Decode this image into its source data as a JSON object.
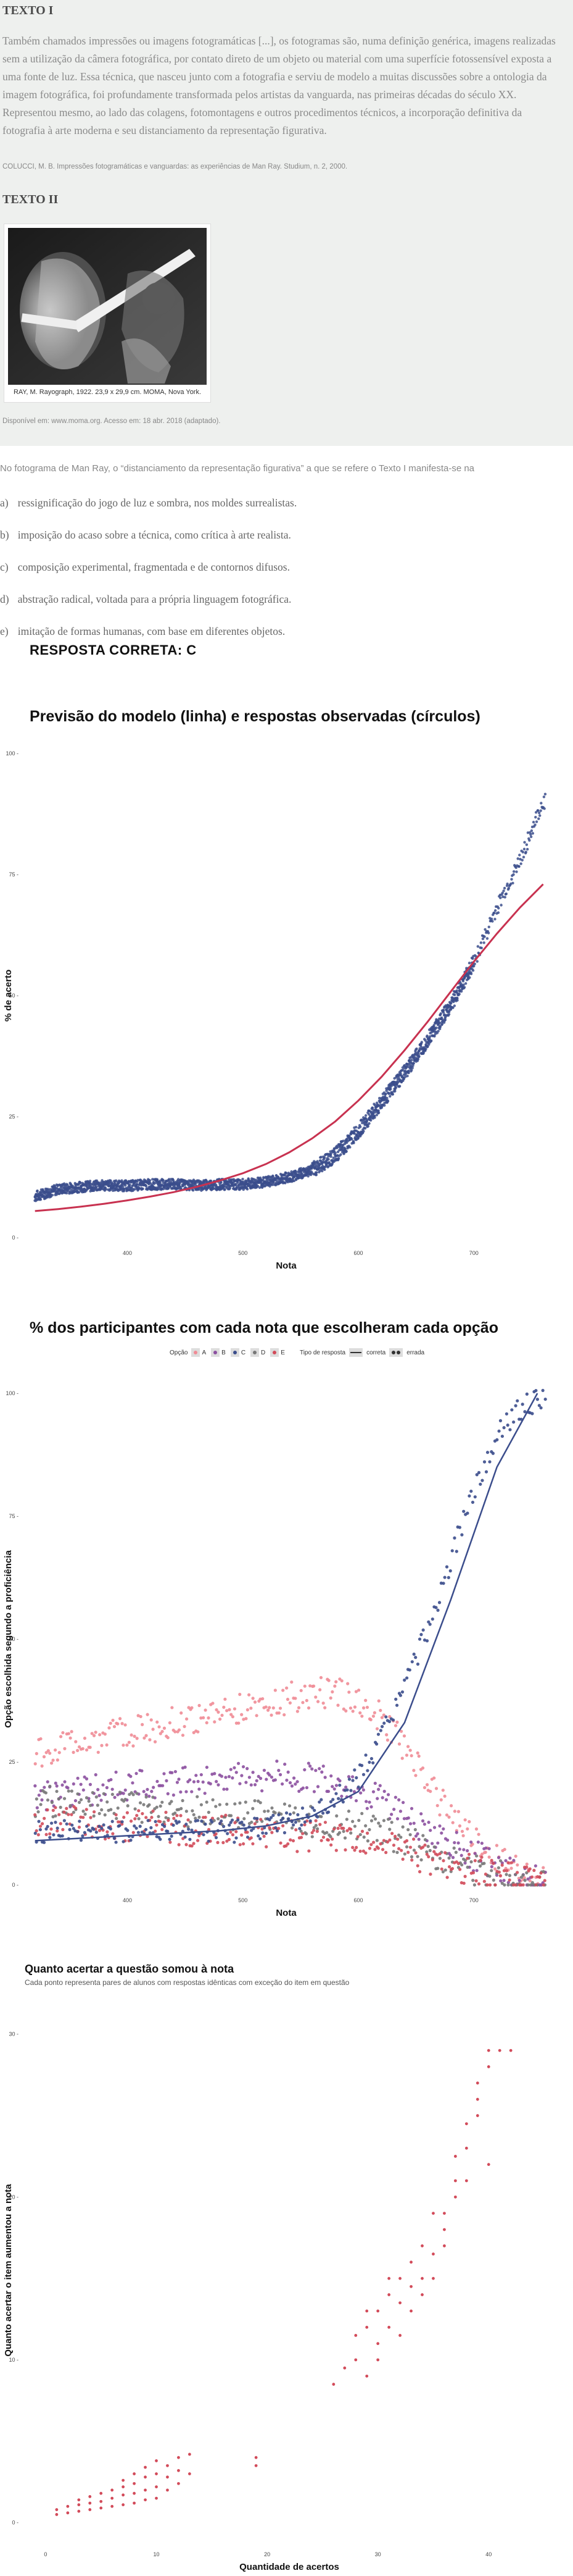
{
  "exam": {
    "texto1_heading": "TEXTO I",
    "texto1_body": "Também chamados impressões ou imagens fotogramáticas [...], os fotogramas são, numa definição genérica, imagens realizadas sem a utilização da câmera fotográfica, por contato direto de um objeto ou material com uma superfície fotossensível exposta a uma fonte de luz. Essa técnica, que nasceu junto com a fotografia e serviu de modelo a muitas discussões sobre a ontologia da imagem fotográfica, foi profundamente transformada pelos artistas da vanguarda, nas primeiras décadas do século XX. Representou mesmo, ao lado das colagens, fotomontagens e outros procedimentos técnicos, a incorporação definitiva da fotografia à arte moderna e seu distanciamento da representação figurativa.",
    "texto1_source": "COLUCCI, M. B. Impressões fotogramáticas e vanguardas: as experiências de Man Ray. Studium, n. 2, 2000.",
    "texto2_heading": "TEXTO II",
    "photo_caption": "RAY, M. Rayograph, 1922. 23,9 x 29,9 cm. MOMA, Nova York.",
    "texto2_source": "Disponível em: www.moma.org. Acesso em: 18 abr. 2018 (adaptado).",
    "question": "No fotograma de Man Ray, o “distanciamento da representação figurativa” a que se refere o Texto I manifesta-se na",
    "options": [
      {
        "letter": "a)",
        "text": "ressignificação do jogo de luz e sombra, nos moldes surrealistas."
      },
      {
        "letter": "b)",
        "text": "imposição do acaso sobre a técnica, como crítica à arte realista."
      },
      {
        "letter": "c)",
        "text": "composição experimental, fragmentada e de contornos difusos."
      },
      {
        "letter": "d)",
        "text": "abstração radical, voltada para a própria linguagem fotográfica."
      },
      {
        "letter": "e)",
        "text": "imitação de formas humanas, com base em diferentes objetos."
      }
    ],
    "answer_text": "RESPOSTA CORRETA: C"
  },
  "colors": {
    "points_blue": "#3b4d8c",
    "model_red": "#c83250",
    "opt_A": "#f08c96",
    "opt_B": "#8c50a0",
    "opt_C": "#3b4d8c",
    "opt_D": "#787878",
    "opt_E": "#d24b5a"
  },
  "chart_data": [
    {
      "type": "scatter",
      "title": "Previsão do modelo (linha) e respostas observadas (círculos)",
      "xlabel": "Nota",
      "ylabel": "% de acerto",
      "xlim": [
        310,
        765
      ],
      "ylim": [
        0,
        100
      ],
      "xticks": [
        400,
        500,
        600,
        700
      ],
      "yticks": [
        0,
        25,
        50,
        75,
        100
      ],
      "tick_labels_y": [
        "0 -",
        "25 -",
        "50 -",
        "75 -",
        "100 -"
      ],
      "tick_labels_x": [
        "400",
        "500",
        "600",
        "700"
      ],
      "grid": false,
      "series": [
        {
          "kind": "points",
          "x": [
            320,
            340,
            360,
            380,
            400,
            420,
            440,
            460,
            480,
            500,
            520,
            540,
            560,
            580,
            600,
            620,
            640,
            660,
            680,
            700,
            720,
            740,
            760
          ],
          "y": [
            8.5,
            10,
            10.5,
            10.8,
            10.7,
            11,
            11,
            10.8,
            11,
            11,
            11.5,
            12.5,
            14,
            17,
            22,
            28,
            34,
            41,
            48,
            57,
            68,
            78,
            90
          ]
        },
        {
          "kind": "line",
          "x": [
            320,
            340,
            360,
            380,
            400,
            420,
            440,
            460,
            480,
            500,
            520,
            540,
            560,
            580,
            600,
            620,
            640,
            660,
            680,
            700,
            720,
            740,
            760
          ],
          "y": [
            5.5,
            5.9,
            6.4,
            7,
            7.7,
            8.5,
            9.4,
            10.5,
            11.8,
            13.3,
            15.2,
            17.6,
            20.5,
            24,
            28.3,
            33.2,
            38.7,
            44.6,
            50.8,
            57,
            62.8,
            68.2,
            73
          ]
        }
      ]
    },
    {
      "type": "scatter",
      "title": "% dos participantes com cada nota que escolheram cada opção",
      "xlabel": "Nota",
      "ylabel": "Opção escolhida segundo a proficiência",
      "xlim": [
        310,
        765
      ],
      "ylim": [
        0,
        100
      ],
      "xticks": [
        400,
        500,
        600,
        700
      ],
      "yticks": [
        0,
        25,
        50,
        75,
        100
      ],
      "tick_labels_y": [
        "0 -",
        "25 -",
        "50 -",
        "75 -",
        "100 -"
      ],
      "tick_labels_x": [
        "400",
        "500",
        "600",
        "700"
      ],
      "legend": {
        "placement": "top",
        "title_option": "Opção",
        "options": [
          "A",
          "B",
          "C",
          "D",
          "E"
        ],
        "title_type": "Tipo de resposta",
        "types": [
          "correta",
          "errada"
        ]
      },
      "x": [
        320,
        340,
        360,
        380,
        400,
        420,
        440,
        460,
        480,
        500,
        520,
        540,
        560,
        580,
        600,
        620,
        640,
        660,
        680,
        700,
        720,
        740,
        760
      ],
      "series": [
        {
          "name": "A",
          "y": [
            27,
            28,
            29,
            30,
            31,
            32,
            33,
            34,
            35,
            36,
            37,
            38,
            39,
            39,
            38,
            34,
            28,
            21,
            14,
            9,
            5,
            3,
            1
          ]
        },
        {
          "name": "B",
          "y": [
            18,
            18.5,
            19,
            19.5,
            20,
            20.5,
            21,
            21.5,
            22,
            22,
            22,
            22,
            22,
            21,
            19,
            17,
            14,
            11,
            8,
            6,
            4,
            2,
            1
          ]
        },
        {
          "name": "C",
          "y": [
            11,
            11,
            11,
            11,
            11,
            11,
            11,
            11,
            11,
            11,
            12,
            13,
            14,
            17,
            22,
            30,
            40,
            52,
            66,
            80,
            92,
            97,
            99
          ]
        },
        {
          "name": "D",
          "y": [
            17,
            17,
            17,
            16.5,
            16,
            15.5,
            15,
            15,
            14.5,
            14,
            14,
            13.5,
            13,
            13,
            12,
            11,
            9,
            7,
            5,
            3,
            2,
            1,
            0.5
          ]
        },
        {
          "name": "E",
          "y": [
            13,
            13,
            13,
            12.5,
            12,
            12,
            11.5,
            11,
            11,
            11,
            10.5,
            10,
            10,
            9.5,
            9,
            8,
            7,
            5,
            4,
            3,
            2,
            1,
            0.5
          ]
        }
      ],
      "fitted_C": {
        "x": [
          320,
          360,
          400,
          440,
          480,
          520,
          560,
          600,
          640,
          680,
          720,
          755
        ],
        "y": [
          9,
          9.5,
          10,
          10.5,
          11,
          12,
          14,
          19,
          33,
          58,
          85,
          100
        ]
      }
    },
    {
      "type": "scatter",
      "title": "Quanto acertar a questão somou à nota",
      "subtitle": "Cada ponto representa pares de alunos com respostas idênticas com exceção do item em questão",
      "xlabel": "Quantidade de acertos",
      "ylabel": "Quanto acertar o item aumentou a nota",
      "xlim": [
        -2,
        46
      ],
      "ylim": [
        -1,
        32
      ],
      "xticks": [
        0,
        10,
        20,
        30,
        40
      ],
      "yticks": [
        0,
        10,
        20,
        30
      ],
      "tick_labels_x": [
        "0",
        "10",
        "20",
        "30",
        "40"
      ],
      "tick_labels_y": [
        "0 -",
        "10 -",
        "20 -",
        "30 -"
      ],
      "points": [
        [
          1,
          0.5
        ],
        [
          1,
          0.8
        ],
        [
          2,
          0.6
        ],
        [
          2,
          1
        ],
        [
          3,
          0.7
        ],
        [
          3,
          1.1
        ],
        [
          3,
          1.4
        ],
        [
          4,
          0.8
        ],
        [
          4,
          1.2
        ],
        [
          4,
          1.6
        ],
        [
          5,
          0.9
        ],
        [
          5,
          1.3
        ],
        [
          5,
          1.8
        ],
        [
          6,
          1
        ],
        [
          6,
          1.5
        ],
        [
          6,
          2
        ],
        [
          7,
          1.1
        ],
        [
          7,
          1.7
        ],
        [
          7,
          2.2
        ],
        [
          7,
          2.6
        ],
        [
          8,
          1.2
        ],
        [
          8,
          1.8
        ],
        [
          8,
          2.4
        ],
        [
          8,
          3
        ],
        [
          9,
          1.4
        ],
        [
          9,
          2
        ],
        [
          9,
          2.8
        ],
        [
          9,
          3.4
        ],
        [
          10,
          1.5
        ],
        [
          10,
          2.2
        ],
        [
          10,
          3
        ],
        [
          10,
          3.8
        ],
        [
          11,
          2
        ],
        [
          11,
          2.8
        ],
        [
          11,
          3.5
        ],
        [
          12,
          2.4
        ],
        [
          12,
          3.2
        ],
        [
          12,
          4
        ],
        [
          13,
          3
        ],
        [
          13,
          4.2
        ],
        [
          19,
          3.5
        ],
        [
          19,
          4
        ],
        [
          26,
          8.5
        ],
        [
          27,
          9.5
        ],
        [
          28,
          10
        ],
        [
          28,
          11.5
        ],
        [
          29,
          9
        ],
        [
          29,
          12
        ],
        [
          29,
          13
        ],
        [
          30,
          10
        ],
        [
          30,
          11
        ],
        [
          30,
          13
        ],
        [
          31,
          12
        ],
        [
          31,
          14
        ],
        [
          31,
          15
        ],
        [
          32,
          11.5
        ],
        [
          32,
          13.5
        ],
        [
          32,
          15
        ],
        [
          33,
          13
        ],
        [
          33,
          14.5
        ],
        [
          33,
          16
        ],
        [
          34,
          14
        ],
        [
          34,
          15
        ],
        [
          34,
          17
        ],
        [
          35,
          15
        ],
        [
          35,
          16.5
        ],
        [
          35,
          19
        ],
        [
          36,
          17
        ],
        [
          36,
          18
        ],
        [
          36,
          19
        ],
        [
          37,
          20
        ],
        [
          37,
          21
        ],
        [
          37,
          22.5
        ],
        [
          38,
          21
        ],
        [
          38,
          23
        ],
        [
          38,
          24.5
        ],
        [
          39,
          25
        ],
        [
          39,
          26
        ],
        [
          39,
          27
        ],
        [
          40,
          22
        ],
        [
          40,
          28
        ],
        [
          40,
          29
        ],
        [
          41,
          29
        ],
        [
          42,
          29
        ]
      ]
    }
  ]
}
